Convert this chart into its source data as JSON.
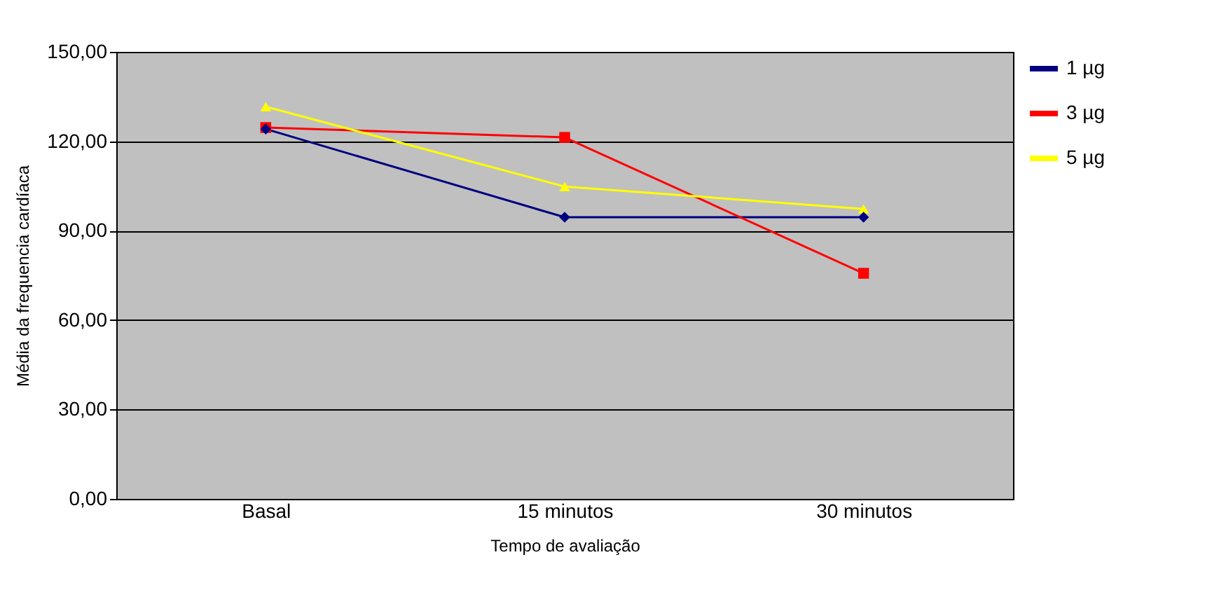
{
  "chart_data": {
    "type": "line",
    "xlabel": "Tempo de avaliação",
    "ylabel": "Média da frequencia cardíaca",
    "categories": [
      "Basal",
      "15 minutos",
      "30 minutos"
    ],
    "series": [
      {
        "name": "1 µg",
        "color": "#000080",
        "marker": "diamond",
        "values": [
          124.1,
          94.5,
          94.5
        ]
      },
      {
        "name": "3 µg",
        "color": "#ff0000",
        "marker": "square",
        "values": [
          124.6,
          121.3,
          75.7
        ]
      },
      {
        "name": "5 µg",
        "color": "#ffff00",
        "marker": "triangle",
        "values": [
          131.6,
          104.8,
          97.3
        ]
      }
    ],
    "ylim": [
      0,
      150
    ],
    "yticks": [
      {
        "value": 0,
        "label": "0,00"
      },
      {
        "value": 30,
        "label": "30,00"
      },
      {
        "value": 60,
        "label": "60,00"
      },
      {
        "value": 90,
        "label": "90,00"
      },
      {
        "value": 120,
        "label": "120,00"
      },
      {
        "value": 150,
        "label": "150,00"
      }
    ],
    "grid": "y",
    "legend": "right",
    "line_style": "solid"
  }
}
